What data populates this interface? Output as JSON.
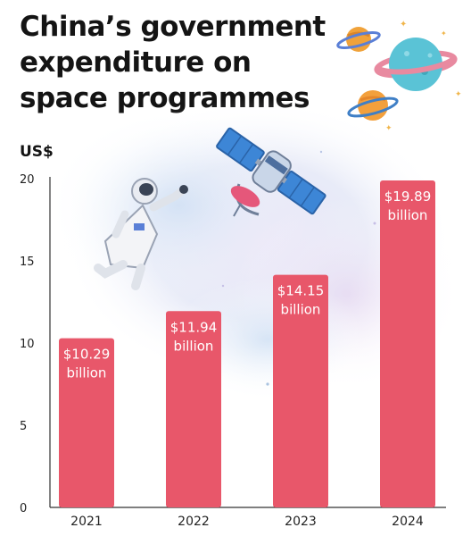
{
  "title": "China’s government expenditure on space programmes",
  "unit_label": "US$",
  "colors": {
    "bar": "#e8576a",
    "axis": "#333333",
    "text": "#141414"
  },
  "illustrations": [
    "nebula-background",
    "astronaut",
    "satellite",
    "planets"
  ],
  "chart_data": {
    "type": "bar",
    "title": "China’s government expenditure on space programmes",
    "ylabel": "US$",
    "xlabel": "",
    "ylim": [
      0,
      20
    ],
    "yticks": [
      0,
      5,
      10,
      15,
      20
    ],
    "grid": false,
    "categories": [
      "2021",
      "2022",
      "2023",
      "2024"
    ],
    "values": [
      10.29,
      11.94,
      14.15,
      19.89
    ],
    "labels": [
      [
        "$10.29",
        "billion"
      ],
      [
        "$11.94",
        "billion"
      ],
      [
        "$14.15",
        "billion"
      ],
      [
        "$19.89",
        "billion"
      ]
    ]
  }
}
